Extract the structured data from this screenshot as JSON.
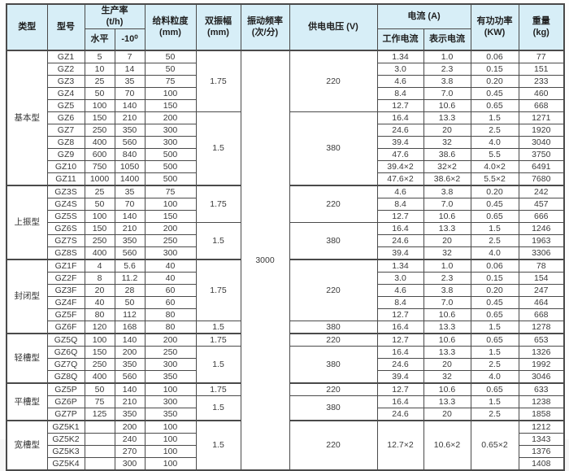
{
  "colors": {
    "header_bg": "#d7eef7",
    "border": "#4a4a4a",
    "text": "#3a3a3a"
  },
  "table": {
    "header": {
      "type": "类型",
      "model": "型号",
      "production_rate": "生产率\n(t/h)",
      "horizontal": "水平",
      "incline": "-10⁰",
      "feed_size": "给料粒度\n(mm)",
      "double_amplitude": "双振幅\n(mm)",
      "vibration_frequency": "振动频率\n(次/分)",
      "supply_voltage": "供电电压 (V)",
      "current": "电流 (A)",
      "working_current": "工作电流",
      "indicated_current": "表示电流",
      "active_power": "有功功率\n(KW)",
      "weight": "重量\n(kg)"
    },
    "vibration_frequency_value": "3000",
    "groups": [
      {
        "type": "基本型",
        "amp_spans": [
          {
            "rows": 5,
            "value": "1.75"
          },
          {
            "rows": 6,
            "value": "1.5"
          }
        ],
        "volt_spans": [
          {
            "rows": 5,
            "value": "220"
          },
          {
            "rows": 6,
            "value": "380"
          }
        ],
        "rows": [
          {
            "model": "GZ1",
            "horiz": "5",
            "incline": "7",
            "feed": "50",
            "work": "1.34",
            "indicated": "1.0",
            "power": "0.06",
            "weight": "77"
          },
          {
            "model": "GZ2",
            "horiz": "10",
            "incline": "14",
            "feed": "50",
            "work": "3.0",
            "indicated": "2.3",
            "power": "0.15",
            "weight": "151"
          },
          {
            "model": "GZ3",
            "horiz": "25",
            "incline": "35",
            "feed": "75",
            "work": "4.6",
            "indicated": "3.8",
            "power": "0.20",
            "weight": "233"
          },
          {
            "model": "GZ4",
            "horiz": "50",
            "incline": "70",
            "feed": "100",
            "work": "8.4",
            "indicated": "7.0",
            "power": "0.45",
            "weight": "460"
          },
          {
            "model": "GZ5",
            "horiz": "100",
            "incline": "140",
            "feed": "150",
            "work": "12.7",
            "indicated": "10.6",
            "power": "0.65",
            "weight": "668"
          },
          {
            "model": "GZ6",
            "horiz": "150",
            "incline": "210",
            "feed": "200",
            "work": "16.4",
            "indicated": "13.3",
            "power": "1.5",
            "weight": "1271"
          },
          {
            "model": "GZ7",
            "horiz": "250",
            "incline": "350",
            "feed": "300",
            "work": "24.6",
            "indicated": "20",
            "power": "2.5",
            "weight": "1920"
          },
          {
            "model": "GZ8",
            "horiz": "400",
            "incline": "560",
            "feed": "300",
            "work": "39.4",
            "indicated": "32",
            "power": "4.0",
            "weight": "3040"
          },
          {
            "model": "GZ9",
            "horiz": "600",
            "incline": "840",
            "feed": "500",
            "work": "47.6",
            "indicated": "38.6",
            "power": "5.5",
            "weight": "3750"
          },
          {
            "model": "GZ10",
            "horiz": "750",
            "incline": "1050",
            "feed": "500",
            "work": "39.4×2",
            "indicated": "32×2",
            "power": "4.0×2",
            "weight": "6491"
          },
          {
            "model": "GZ11",
            "horiz": "1000",
            "incline": "1400",
            "feed": "500",
            "work": "47.6×2",
            "indicated": "38.6×2",
            "power": "5.5×2",
            "weight": "7680"
          }
        ]
      },
      {
        "type": "上振型",
        "amp_spans": [
          {
            "rows": 3,
            "value": "1.75"
          },
          {
            "rows": 3,
            "value": "1.5"
          }
        ],
        "volt_spans": [
          {
            "rows": 3,
            "value": "220"
          },
          {
            "rows": 3,
            "value": "380"
          }
        ],
        "rows": [
          {
            "model": "GZ3S",
            "horiz": "25",
            "incline": "35",
            "feed": "75",
            "work": "4.6",
            "indicated": "3.8",
            "power": "0.20",
            "weight": "242"
          },
          {
            "model": "GZ4S",
            "horiz": "50",
            "incline": "70",
            "feed": "100",
            "work": "8.4",
            "indicated": "7.0",
            "power": "0.45",
            "weight": "457"
          },
          {
            "model": "GZ5S",
            "horiz": "100",
            "incline": "140",
            "feed": "150",
            "work": "12.7",
            "indicated": "10.6",
            "power": "0.65",
            "weight": "666"
          },
          {
            "model": "GZ6S",
            "horiz": "150",
            "incline": "210",
            "feed": "200",
            "work": "16.4",
            "indicated": "13.3",
            "power": "1.5",
            "weight": "1246"
          },
          {
            "model": "GZ7S",
            "horiz": "250",
            "incline": "350",
            "feed": "250",
            "work": "24.6",
            "indicated": "20",
            "power": "2.5",
            "weight": "1963"
          },
          {
            "model": "GZ8S",
            "horiz": "400",
            "incline": "560",
            "feed": "300",
            "work": "39.4",
            "indicated": "32",
            "power": "4.0",
            "weight": "3306"
          }
        ]
      },
      {
        "type": "封闭型",
        "amp_spans": [
          {
            "rows": 5,
            "value": "1.75"
          },
          {
            "rows": 1,
            "value": "1.5"
          }
        ],
        "volt_spans": [
          {
            "rows": 5,
            "value": "220"
          },
          {
            "rows": 1,
            "value": "380"
          }
        ],
        "rows": [
          {
            "model": "GZ1F",
            "horiz": "4",
            "incline": "5.6",
            "feed": "40",
            "work": "1.34",
            "indicated": "1.0",
            "power": "0.06",
            "weight": "78"
          },
          {
            "model": "GZ2F",
            "horiz": "8",
            "incline": "11.2",
            "feed": "40",
            "work": "3.0",
            "indicated": "2.3",
            "power": "0.15",
            "weight": "154"
          },
          {
            "model": "GZ3F",
            "horiz": "20",
            "incline": "28",
            "feed": "60",
            "work": "4.6",
            "indicated": "3.8",
            "power": "0.20",
            "weight": "247"
          },
          {
            "model": "GZ4F",
            "horiz": "40",
            "incline": "50",
            "feed": "60",
            "work": "8.4",
            "indicated": "7.0",
            "power": "0.45",
            "weight": "464"
          },
          {
            "model": "GZ5F",
            "horiz": "80",
            "incline": "112",
            "feed": "80",
            "work": "12.7",
            "indicated": "10.6",
            "power": "0.65",
            "weight": "668"
          },
          {
            "model": "GZ6F",
            "horiz": "120",
            "incline": "168",
            "feed": "80",
            "work": "16.4",
            "indicated": "13.3",
            "power": "1.5",
            "weight": "1278"
          }
        ]
      },
      {
        "type": "轻槽型",
        "amp_spans": [
          {
            "rows": 1,
            "value": "1.75"
          },
          {
            "rows": 3,
            "value": "1.5"
          }
        ],
        "volt_spans": [
          {
            "rows": 1,
            "value": "220"
          },
          {
            "rows": 3,
            "value": "380"
          }
        ],
        "rows": [
          {
            "model": "GZ5Q",
            "horiz": "100",
            "incline": "140",
            "feed": "200",
            "work": "12.7",
            "indicated": "10.6",
            "power": "0.65",
            "weight": "653"
          },
          {
            "model": "GZ6Q",
            "horiz": "150",
            "incline": "200",
            "feed": "250",
            "work": "16.4",
            "indicated": "13.3",
            "power": "1.5",
            "weight": "1326"
          },
          {
            "model": "GZ7Q",
            "horiz": "250",
            "incline": "350",
            "feed": "300",
            "work": "24.6",
            "indicated": "20",
            "power": "2.5",
            "weight": "1992"
          },
          {
            "model": "GZ8Q",
            "horiz": "400",
            "incline": "560",
            "feed": "350",
            "work": "39.4",
            "indicated": "32",
            "power": "4.0",
            "weight": "3046"
          }
        ]
      },
      {
        "type": "平槽型",
        "amp_spans": [
          {
            "rows": 1,
            "value": "1.75"
          },
          {
            "rows": 2,
            "value": "1.5"
          }
        ],
        "volt_spans": [
          {
            "rows": 1,
            "value": "220"
          },
          {
            "rows": 2,
            "value": "380"
          }
        ],
        "rows": [
          {
            "model": "GZ5P",
            "horiz": "50",
            "incline": "140",
            "feed": "100",
            "work": "12.7",
            "indicated": "10.6",
            "power": "0.65",
            "weight": "633"
          },
          {
            "model": "GZ6P",
            "horiz": "75",
            "incline": "210",
            "feed": "300",
            "work": "16.4",
            "indicated": "13.3",
            "power": "1.5",
            "weight": "1238"
          },
          {
            "model": "GZ7P",
            "horiz": "125",
            "incline": "350",
            "feed": "350",
            "work": "24.6",
            "indicated": "20",
            "power": "2.5",
            "weight": "1858"
          }
        ]
      },
      {
        "type": "宽槽型",
        "amp_spans": [
          {
            "rows": 4,
            "value": "1.5"
          }
        ],
        "volt_spans": [
          {
            "rows": 4,
            "value": "220"
          }
        ],
        "merged_electrical": {
          "work": "12.7×2",
          "indicated": "10.6×2",
          "power": "0.65×2"
        },
        "rows": [
          {
            "model": "GZ5K1",
            "horiz": "",
            "incline": "200",
            "feed": "100",
            "weight": "1212"
          },
          {
            "model": "GZ5K2",
            "horiz": "",
            "incline": "240",
            "feed": "100",
            "weight": "1343"
          },
          {
            "model": "GZ5K3",
            "horiz": "",
            "incline": "270",
            "feed": "100",
            "weight": "1376"
          },
          {
            "model": "GZ5K4",
            "horiz": "",
            "incline": "300",
            "feed": "100",
            "weight": "1408"
          }
        ]
      }
    ]
  }
}
